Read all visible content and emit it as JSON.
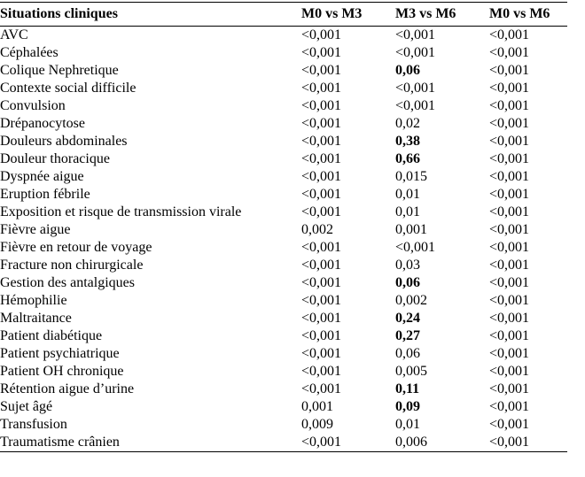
{
  "headers": [
    "Situations cliniques",
    "M0 vs M3",
    "M3 vs M6",
    "M0 vs M6"
  ],
  "rows": [
    {
      "label": "AVC",
      "m0m3": "<0,001",
      "m3m6": "<0,001",
      "m3m6bold": false,
      "m0m6": "<0,001"
    },
    {
      "label": "Céphalées",
      "m0m3": "<0,001",
      "m3m6": "<0,001",
      "m3m6bold": false,
      "m0m6": "<0,001"
    },
    {
      "label": "Colique Nephretique",
      "m0m3": "<0,001",
      "m3m6": "0,06",
      "m3m6bold": true,
      "m0m6": "<0,001"
    },
    {
      "label": "Contexte social difficile",
      "m0m3": "<0,001",
      "m3m6": "<0,001",
      "m3m6bold": false,
      "m0m6": "<0,001"
    },
    {
      "label": "Convulsion",
      "m0m3": "<0,001",
      "m3m6": "<0,001",
      "m3m6bold": false,
      "m0m6": "<0,001"
    },
    {
      "label": "Drépanocytose",
      "m0m3": "<0,001",
      "m3m6": "0,02",
      "m3m6bold": false,
      "m0m6": "<0,001"
    },
    {
      "label": "Douleurs abdominales",
      "m0m3": "<0,001",
      "m3m6": "0,38",
      "m3m6bold": true,
      "m0m6": "<0,001"
    },
    {
      "label": "Douleur thoracique",
      "m0m3": "<0,001",
      "m3m6": "0,66",
      "m3m6bold": true,
      "m0m6": "<0,001"
    },
    {
      "label": "Dyspnée aigue",
      "m0m3": "<0,001",
      "m3m6": "0,015",
      "m3m6bold": false,
      "m0m6": "<0,001"
    },
    {
      "label": "Eruption fébrile",
      "m0m3": "<0,001",
      "m3m6": "0,01",
      "m3m6bold": false,
      "m0m6": "<0,001"
    },
    {
      "label": "Exposition et risque de transmission virale",
      "m0m3": "<0,001",
      "m3m6": "0,01",
      "m3m6bold": false,
      "m0m6": "<0,001"
    },
    {
      "label": "Fièvre aigue",
      "m0m3": "0,002",
      "m3m6": "0,001",
      "m3m6bold": false,
      "m0m6": "<0,001"
    },
    {
      "label": "Fièvre en retour de voyage",
      "m0m3": "<0,001",
      "m3m6": "<0,001",
      "m3m6bold": false,
      "m0m6": "<0,001"
    },
    {
      "label": "Fracture non chirurgicale",
      "m0m3": "<0,001",
      "m3m6": "0,03",
      "m3m6bold": false,
      "m0m6": "<0,001"
    },
    {
      "label": "Gestion des antalgiques",
      "m0m3": "<0,001",
      "m3m6": "0,06",
      "m3m6bold": true,
      "m0m6": "<0,001"
    },
    {
      "label": "Hémophilie",
      "m0m3": "<0,001",
      "m3m6": "0,002",
      "m3m6bold": false,
      "m0m6": "<0,001"
    },
    {
      "label": "Maltraitance",
      "m0m3": "<0,001",
      "m3m6": "0,24",
      "m3m6bold": true,
      "m0m6": "<0,001"
    },
    {
      "label": "Patient diabétique",
      "m0m3": "<0,001",
      "m3m6": "0,27",
      "m3m6bold": true,
      "m0m6": "<0,001"
    },
    {
      "label": "Patient psychiatrique",
      "m0m3": "<0,001",
      "m3m6": "0,06",
      "m3m6bold": false,
      "m0m6": "<0,001"
    },
    {
      "label": "Patient OH chronique",
      "m0m3": "<0,001",
      "m3m6": "0,005",
      "m3m6bold": false,
      "m0m6": "<0,001"
    },
    {
      "label": "Rétention aigue d’urine",
      "m0m3": "<0,001",
      "m3m6": "0,11",
      "m3m6bold": true,
      "m0m6": "<0,001"
    },
    {
      "label": "Sujet âgé",
      "m0m3": "0,001",
      "m3m6": "0,09",
      "m3m6bold": true,
      "m0m6": "<0,001"
    },
    {
      "label": "Transfusion",
      "m0m3": "0,009",
      "m3m6": "0,01",
      "m3m6bold": false,
      "m0m6": "<0,001"
    },
    {
      "label": "Traumatisme crânien",
      "m0m3": "<0,001",
      "m3m6": "0,006",
      "m3m6bold": false,
      "m0m6": "<0,001"
    }
  ]
}
